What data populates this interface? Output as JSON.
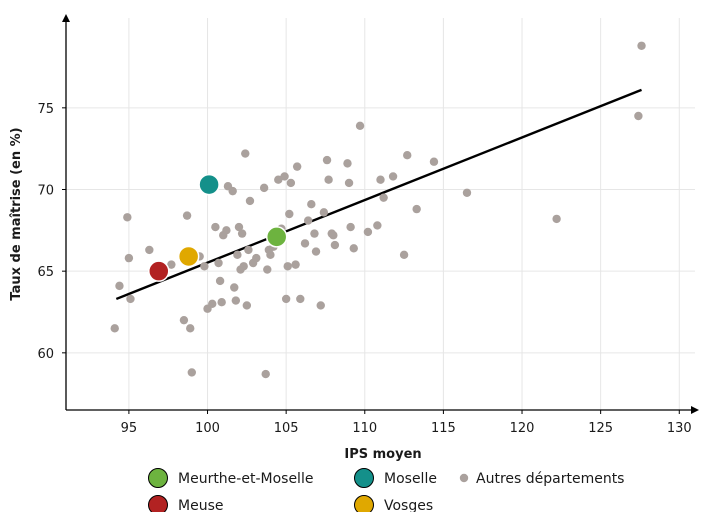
{
  "chart_data": {
    "type": "scatter",
    "xlabel": "IPS moyen",
    "ylabel": "Taux de maîtrise (en %)",
    "xlim": [
      91,
      131
    ],
    "ylim": [
      56.5,
      80.5
    ],
    "xticks": [
      95,
      100,
      105,
      110,
      115,
      120,
      125,
      130
    ],
    "yticks": [
      60,
      65,
      70,
      75
    ],
    "grid": true,
    "legend_position": "bottom",
    "trendline": {
      "x": [
        94.2,
        127.6
      ],
      "y": [
        63.3,
        76.1
      ],
      "color": "#000000"
    },
    "series": [
      {
        "name": "Autres départements",
        "color": "#aaa19d",
        "marker": "small",
        "x": [
          94.1,
          94.4,
          94.9,
          95.0,
          95.1,
          96.3,
          97.7,
          98.5,
          98.7,
          98.9,
          99.0,
          99.5,
          99.8,
          100.0,
          100.3,
          100.5,
          100.7,
          100.8,
          100.9,
          101.0,
          101.2,
          101.3,
          101.6,
          101.7,
          101.8,
          101.9,
          102.0,
          102.1,
          102.2,
          102.3,
          102.4,
          102.5,
          102.6,
          102.7,
          102.9,
          103.1,
          103.6,
          103.7,
          103.8,
          103.9,
          104.0,
          104.2,
          104.5,
          104.7,
          104.9,
          105.0,
          105.1,
          105.2,
          105.3,
          105.6,
          105.7,
          105.9,
          106.2,
          106.4,
          106.6,
          106.8,
          106.9,
          107.2,
          107.4,
          107.6,
          107.7,
          107.9,
          108.0,
          108.1,
          108.9,
          109.0,
          109.1,
          109.3,
          109.7,
          110.2,
          110.8,
          111.0,
          111.2,
          111.8,
          112.5,
          112.7,
          113.3,
          114.4,
          116.5,
          122.2,
          127.4,
          127.6
        ],
        "y": [
          61.5,
          64.1,
          68.3,
          65.8,
          63.3,
          66.3,
          65.4,
          62.0,
          68.4,
          61.5,
          58.8,
          65.9,
          65.3,
          62.7,
          63.0,
          67.7,
          65.5,
          64.4,
          63.1,
          67.2,
          67.5,
          70.2,
          69.9,
          64.0,
          63.2,
          66.0,
          67.7,
          65.1,
          67.3,
          65.3,
          72.2,
          62.9,
          66.3,
          69.3,
          65.5,
          65.8,
          70.1,
          58.7,
          65.1,
          66.3,
          66.0,
          66.5,
          70.6,
          67.6,
          70.8,
          63.3,
          65.3,
          68.5,
          70.4,
          65.4,
          71.4,
          63.3,
          66.7,
          68.1,
          69.1,
          67.3,
          66.2,
          62.9,
          68.6,
          71.8,
          70.6,
          67.3,
          67.2,
          66.6,
          71.6,
          70.4,
          67.7,
          66.4,
          73.9,
          67.4,
          67.8,
          70.6,
          69.5,
          70.8,
          66.0,
          72.1,
          68.8,
          71.7,
          69.8,
          68.2,
          74.5,
          78.8
        ]
      },
      {
        "name": "Meurthe-et-Moselle",
        "color": "#6db33f",
        "marker": "large",
        "x": [
          104.4
        ],
        "y": [
          67.1
        ]
      },
      {
        "name": "Moselle",
        "color": "#14908a",
        "marker": "large",
        "x": [
          100.1
        ],
        "y": [
          70.3
        ]
      },
      {
        "name": "Meuse",
        "color": "#b22222",
        "marker": "large",
        "x": [
          96.9
        ],
        "y": [
          65.0
        ]
      },
      {
        "name": "Vosges",
        "color": "#e0a800",
        "marker": "large",
        "x": [
          98.8
        ],
        "y": [
          65.9
        ]
      }
    ],
    "legend": [
      {
        "label": "Meurthe-et-Moselle",
        "color": "#6db33f",
        "marker": "large"
      },
      {
        "label": "Moselle",
        "color": "#14908a",
        "marker": "large"
      },
      {
        "label": "Autres départements",
        "color": "#aaa19d",
        "marker": "small"
      },
      {
        "label": "Meuse",
        "color": "#b22222",
        "marker": "large"
      },
      {
        "label": "Vosges",
        "color": "#e0a800",
        "marker": "large"
      }
    ]
  }
}
